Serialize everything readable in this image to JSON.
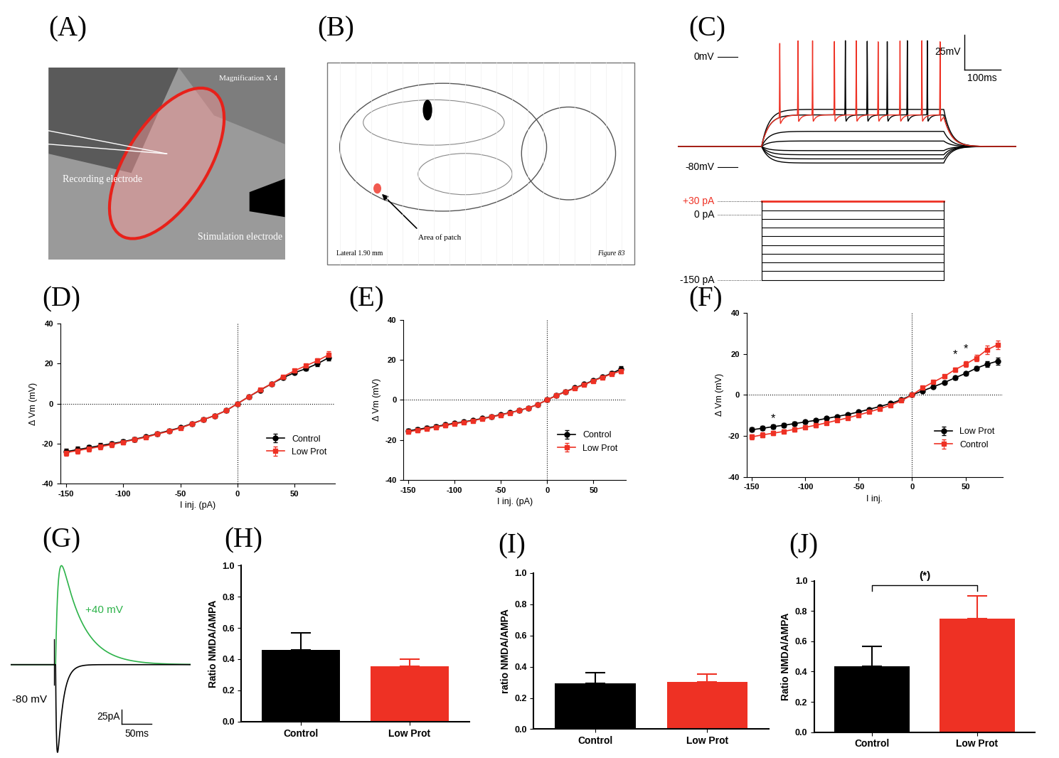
{
  "image_a": {
    "label": "(A)",
    "magnification": "Magnification X 4",
    "recording": "Recording electrode",
    "stimulation": "Stimulation electrode"
  },
  "atlas_b": {
    "label": "(B)",
    "lateral": "Lateral 1.90 mm",
    "figure": "Figure 83",
    "arrow_label": "Area of patch"
  },
  "traces_c": {
    "label": "(C)",
    "xlim": [
      -230,
      700
    ],
    "ylim": [
      -88,
      25
    ],
    "pulse_ms": [
      0,
      500
    ],
    "v_rest": -65,
    "spike_peak": 12,
    "zero": {
      "value": 0,
      "label": "0mV"
    },
    "rest": {
      "value": -80,
      "label": "-80mV"
    },
    "scale_bar": {
      "v": 25,
      "v_label": "25mV",
      "t": 100,
      "t_label": "100ms"
    },
    "traces": [
      {
        "v_steady": -77,
        "color": "#000000",
        "spikes": []
      },
      {
        "v_steady": -74,
        "color": "#000000",
        "spikes": []
      },
      {
        "v_steady": -71,
        "color": "#000000",
        "spikes": []
      },
      {
        "v_steady": -68,
        "color": "#000000",
        "spikes": []
      },
      {
        "v_steady": -61,
        "color": "#000000",
        "spikes": []
      },
      {
        "v_steady": -54,
        "color": "#000000",
        "spikes": []
      },
      {
        "v_steady": -38,
        "color": "#000000",
        "spikes": []
      },
      {
        "v_steady": -42,
        "color": "#000000",
        "spikes": [
          230,
          290,
          345,
          400,
          455
        ]
      },
      {
        "v_steady": -42,
        "color": "#ee3124",
        "spikes": [
          50,
          100,
          140,
          200,
          260,
          320,
          380,
          440,
          490
        ]
      }
    ],
    "current": {
      "ylim": [
        -160,
        40
      ],
      "steps": [
        30,
        10,
        -10,
        -30,
        -50,
        -70,
        -90,
        -110,
        -130,
        -150
      ],
      "labels": [
        {
          "value": 30,
          "label": "+30 pA",
          "color": "#ee3124"
        },
        {
          "value": 0,
          "label": "0 pA",
          "color": "#000000"
        },
        {
          "value": -150,
          "label": "-150 pA",
          "color": "#000000"
        }
      ]
    }
  },
  "epsc_g": {
    "label": "(G)",
    "xlim": [
      -75,
      225
    ],
    "ylim": [
      -165,
      190
    ],
    "traces": [
      {
        "name": "+40 mV",
        "color": "#2db34a",
        "peak_pA": 175,
        "rise_ms": 4,
        "decay_ms": 35
      },
      {
        "name": "-80 mV",
        "color": "#000000",
        "peak_pA": -155,
        "rise_ms": 1.5,
        "decay_ms": 9
      }
    ],
    "scale_bar": {
      "i": 25,
      "i_label": "25pA",
      "t": 50,
      "t_label": "50ms"
    }
  },
  "chart_data": [
    {
      "label": "(D)",
      "type": "line",
      "x_label": "I inj. (pA)",
      "y_label": "Δ Vm (mV)",
      "x": [
        -150,
        -140,
        -130,
        -120,
        -110,
        -100,
        -90,
        -80,
        -70,
        -60,
        -50,
        -40,
        -30,
        -20,
        -10,
        0,
        10,
        20,
        30,
        40,
        50,
        60,
        70,
        80
      ],
      "xlim": [
        -155,
        85
      ],
      "ylim": [
        -40,
        40
      ],
      "xticks": [
        -150,
        -100,
        -50,
        0,
        50
      ],
      "yticks": [
        -40,
        -20,
        0,
        20,
        40
      ],
      "legend": "lower right",
      "ref_lines": [
        {
          "axis": "x",
          "value": 0
        },
        {
          "axis": "y",
          "value": 0
        }
      ],
      "series": [
        {
          "name": "Control",
          "color": "#000000",
          "marker": "o",
          "values": [
            -24,
            -23,
            -22,
            -21,
            -20,
            -19,
            -17.8,
            -16.5,
            -15,
            -13.5,
            -12,
            -10,
            -8,
            -6,
            -3.5,
            0,
            3.5,
            6.8,
            10,
            13,
            15.5,
            17.5,
            20,
            23
          ],
          "errors": [
            1.6,
            1.5,
            1.4,
            1.3,
            1.2,
            1.1,
            1,
            0.9,
            0.8,
            0.7,
            0.6,
            0.5,
            0.4,
            0.3,
            0.2,
            0,
            0.2,
            0.3,
            0.4,
            0.5,
            0.7,
            0.9,
            1.1,
            1.5
          ]
        },
        {
          "name": "Low Prot",
          "color": "#ee3124",
          "marker": "s",
          "values": [
            -24.5,
            -23.5,
            -22.5,
            -21.5,
            -20.5,
            -19.2,
            -18,
            -16.8,
            -15.2,
            -13.8,
            -12.2,
            -10.2,
            -8,
            -6,
            -3.5,
            0,
            3.5,
            7,
            10,
            13.5,
            16.5,
            19,
            21.5,
            24.5
          ],
          "errors": [
            1.6,
            1.5,
            1.4,
            1.3,
            1.2,
            1.1,
            1,
            0.9,
            0.8,
            0.7,
            0.6,
            0.5,
            0.4,
            0.3,
            0.2,
            0,
            0.2,
            0.3,
            0.4,
            0.5,
            0.7,
            0.9,
            1.1,
            1.8
          ]
        }
      ]
    },
    {
      "label": "(E)",
      "type": "line",
      "x_label": "I inj. (pA)",
      "y_label": "Δ Vm (mV)",
      "x": [
        -150,
        -140,
        -130,
        -120,
        -110,
        -100,
        -90,
        -80,
        -70,
        -60,
        -50,
        -40,
        -30,
        -20,
        -10,
        0,
        10,
        20,
        30,
        40,
        50,
        60,
        70,
        80
      ],
      "xlim": [
        -155,
        85
      ],
      "ylim": [
        -40,
        40
      ],
      "xticks": [
        -150,
        -100,
        -50,
        0,
        50
      ],
      "yticks": [
        -40,
        -20,
        0,
        20,
        40
      ],
      "legend": "lower right",
      "ref_lines": [
        {
          "axis": "x",
          "value": 0
        },
        {
          "axis": "y",
          "value": 0
        }
      ],
      "series": [
        {
          "name": "Control",
          "color": "#000000",
          "marker": "o",
          "values": [
            -15.5,
            -14.8,
            -14,
            -13.3,
            -12.5,
            -11.7,
            -11,
            -10.2,
            -9.3,
            -8.4,
            -7.4,
            -6.4,
            -5.3,
            -4,
            -2.3,
            0,
            2.2,
            4.2,
            6,
            7.8,
            9.7,
            11.5,
            13.3,
            15.5
          ],
          "errors": [
            1,
            1,
            0.9,
            0.9,
            0.8,
            0.8,
            0.7,
            0.7,
            0.6,
            0.6,
            0.5,
            0.5,
            0.4,
            0.3,
            0.2,
            0,
            0.2,
            0.3,
            0.4,
            0.5,
            0.6,
            0.7,
            0.9,
            1.2
          ]
        },
        {
          "name": "Low Prot",
          "color": "#ee3124",
          "marker": "s",
          "values": [
            -16,
            -15.2,
            -14.4,
            -13.6,
            -12.8,
            -12,
            -11.2,
            -10.4,
            -9.5,
            -8.6,
            -7.6,
            -6.5,
            -5.3,
            -4,
            -2.3,
            0,
            2.1,
            4,
            5.8,
            7.6,
            9.5,
            11.3,
            13,
            14.5
          ],
          "errors": [
            1,
            1,
            0.9,
            0.9,
            0.8,
            0.8,
            0.7,
            0.7,
            0.6,
            0.6,
            0.5,
            0.5,
            0.4,
            0.3,
            0.2,
            0,
            0.2,
            0.3,
            0.4,
            0.5,
            0.6,
            0.7,
            0.9,
            1.2
          ]
        }
      ]
    },
    {
      "label": "(F)",
      "type": "line",
      "x_label": "I inj.",
      "y_label": "Δ Vm (mV)",
      "x": [
        -150,
        -140,
        -130,
        -120,
        -110,
        -100,
        -90,
        -80,
        -70,
        -60,
        -50,
        -40,
        -30,
        -20,
        -10,
        0,
        10,
        20,
        30,
        40,
        50,
        60,
        70,
        80
      ],
      "xlim": [
        -155,
        85
      ],
      "ylim": [
        -40,
        40
      ],
      "xticks": [
        -150,
        -100,
        -50,
        0,
        50
      ],
      "yticks": [
        -40,
        -20,
        0,
        20,
        40
      ],
      "legend": "lower right",
      "ref_lines": [
        {
          "axis": "x",
          "value": 0
        },
        {
          "axis": "y",
          "value": 0
        }
      ],
      "annotations": [
        {
          "text": "*",
          "x": -130,
          "y": -14
        },
        {
          "text": "*",
          "x": 40,
          "y": 17
        },
        {
          "text": "*",
          "x": 50,
          "y": 20
        }
      ],
      "series": [
        {
          "name": "Low Prot",
          "color": "#000000",
          "marker": "o",
          "values": [
            -17,
            -16.3,
            -15.5,
            -14.8,
            -14,
            -13.2,
            -12.4,
            -11.5,
            -10.5,
            -9.5,
            -8.3,
            -7,
            -5.6,
            -4.2,
            -2.3,
            0,
            2,
            4,
            6,
            8.3,
            10.5,
            13,
            15,
            16.5
          ],
          "errors": [
            1,
            1,
            0.9,
            0.9,
            0.8,
            0.8,
            0.7,
            0.7,
            0.6,
            0.6,
            0.5,
            0.5,
            0.4,
            0.3,
            0.2,
            0,
            0.3,
            0.4,
            0.5,
            0.7,
            0.9,
            1.1,
            1.4,
            1.6
          ]
        },
        {
          "name": "Control",
          "color": "#ee3124",
          "marker": "s",
          "values": [
            -20.5,
            -19.5,
            -18.7,
            -17.8,
            -16.8,
            -15.8,
            -14.8,
            -13.6,
            -12.4,
            -11.2,
            -9.8,
            -8.3,
            -6.7,
            -5,
            -2.8,
            0,
            3.5,
            6.3,
            9,
            12.3,
            15,
            18,
            22,
            24.5
          ],
          "errors": [
            1.2,
            1.1,
            1.1,
            1,
            1,
            0.9,
            0.9,
            0.8,
            0.8,
            0.7,
            0.6,
            0.5,
            0.4,
            0.3,
            0.2,
            0,
            0.4,
            0.6,
            0.8,
            1,
            1.3,
            1.6,
            2,
            2.2
          ]
        }
      ]
    },
    {
      "label": "(H)",
      "type": "bar",
      "y_label": "Ratio NMDA/AMPA",
      "categories": [
        "Control",
        "Low Prot"
      ],
      "values": [
        0.46,
        0.355
      ],
      "errors": [
        0.11,
        0.045
      ],
      "colors": [
        "#000000",
        "#ee3124"
      ],
      "ylim": [
        0.0,
        1.0
      ],
      "yticks": [
        0.0,
        0.2,
        0.4,
        0.6,
        0.8,
        1.0
      ]
    },
    {
      "label": "(I)",
      "type": "bar",
      "y_label": "ratio NMDA/AMPA",
      "categories": [
        "Control",
        "Low Prot"
      ],
      "values": [
        0.295,
        0.305
      ],
      "errors": [
        0.065,
        0.05
      ],
      "colors": [
        "#000000",
        "#ee3124"
      ],
      "ylim": [
        0.0,
        1.0
      ],
      "yticks": [
        0.0,
        0.2,
        0.4,
        0.6,
        0.8,
        1.0
      ]
    },
    {
      "label": "(J)",
      "type": "bar",
      "y_label": "Ratio NMDA/AMPA",
      "categories": [
        "Control",
        "Low Prot"
      ],
      "values": [
        0.435,
        0.75
      ],
      "errors": [
        0.13,
        0.15
      ],
      "colors": [
        "#000000",
        "#ee3124"
      ],
      "ylim": [
        0.0,
        1.0
      ],
      "yticks": [
        0.0,
        0.2,
        0.4,
        0.6,
        0.8,
        1.0
      ],
      "significance": {
        "label": "(*)",
        "between": [
          0,
          1
        ],
        "y": 0.97
      }
    }
  ]
}
